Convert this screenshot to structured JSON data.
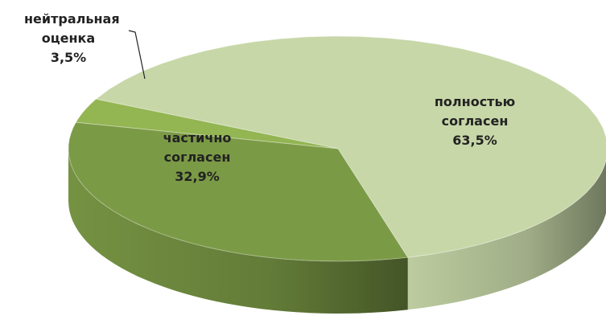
{
  "chart_data": {
    "type": "pie3d",
    "categories": [
      "полностью согласен",
      "нейтральная оценка",
      "частично согласен"
    ],
    "values": [
      63.5,
      3.5,
      32.9
    ],
    "value_labels": [
      "63,5%",
      "3,5%",
      "32,9%"
    ],
    "colors": [
      "#c7d7a8",
      "#93b552",
      "#7b9a46"
    ]
  }
}
